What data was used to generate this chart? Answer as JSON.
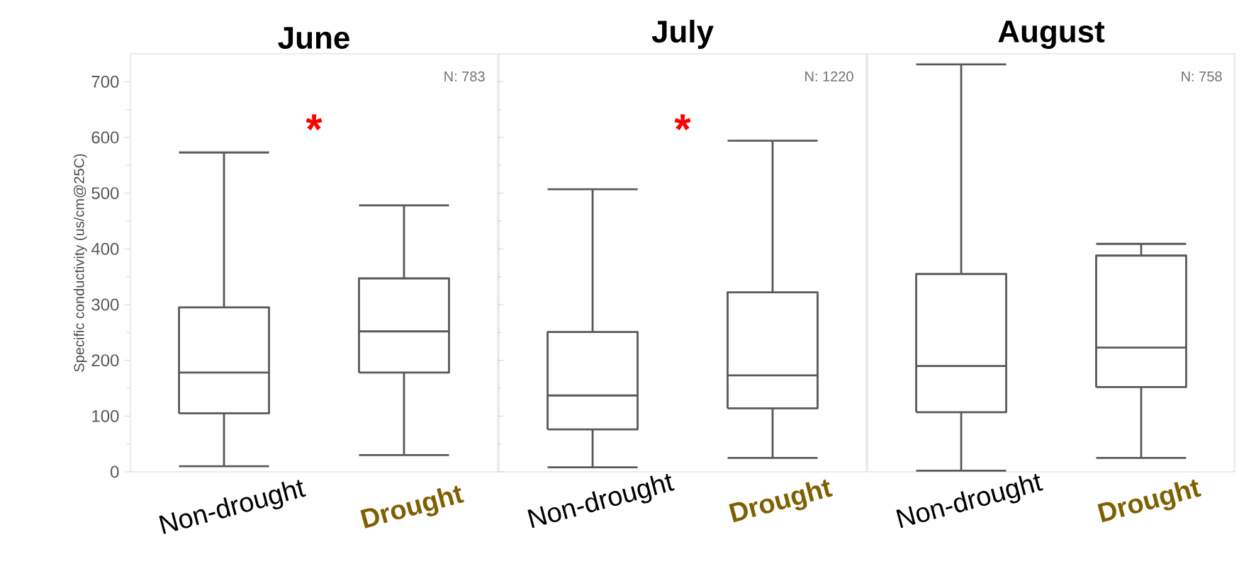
{
  "chart_data": [
    {
      "type": "box",
      "title": "June",
      "ylabel": "Specific conductivity (us/cm@25C)",
      "categories": [
        "Non-drought",
        "Drought"
      ],
      "ylim": [
        0,
        750
      ],
      "yticks": [
        0,
        100,
        200,
        300,
        400,
        500,
        600,
        700
      ],
      "annotations": [
        "N: 783",
        "*"
      ],
      "series": [
        {
          "color": "#595959",
          "boxes": [
            {
              "low": 10,
              "q1": 105,
              "median": 178,
              "q3": 295,
              "high": 573
            },
            {
              "low": 30,
              "q1": 178,
              "median": 252,
              "q3": 347,
              "high": 478
            }
          ]
        }
      ]
    },
    {
      "type": "box",
      "title": "July",
      "categories": [
        "Non-drought",
        "Drought"
      ],
      "ylim": [
        0,
        750
      ],
      "tick_labels": "x",
      "annotations": [
        "N: 1220",
        "*"
      ],
      "series": [
        {
          "color": "#595959",
          "boxes": [
            {
              "low": 8,
              "q1": 76,
              "median": 137,
              "q3": 251,
              "high": 507
            },
            {
              "low": 25,
              "q1": 114,
              "median": 173,
              "q3": 322,
              "high": 594
            }
          ]
        }
      ]
    },
    {
      "type": "box",
      "title": "August",
      "categories": [
        "Non-drought",
        "Drought"
      ],
      "ylim": [
        0,
        750
      ],
      "tick_labels": "x",
      "annotations": [
        "N: 758"
      ],
      "series": [
        {
          "color": "#595959",
          "boxes": [
            {
              "low": 2,
              "q1": 107,
              "median": 190,
              "q3": 355,
              "high": 731
            },
            {
              "low": 25,
              "q1": 152,
              "median": 223,
              "q3": 388,
              "high": 409
            }
          ]
        }
      ]
    }
  ]
}
